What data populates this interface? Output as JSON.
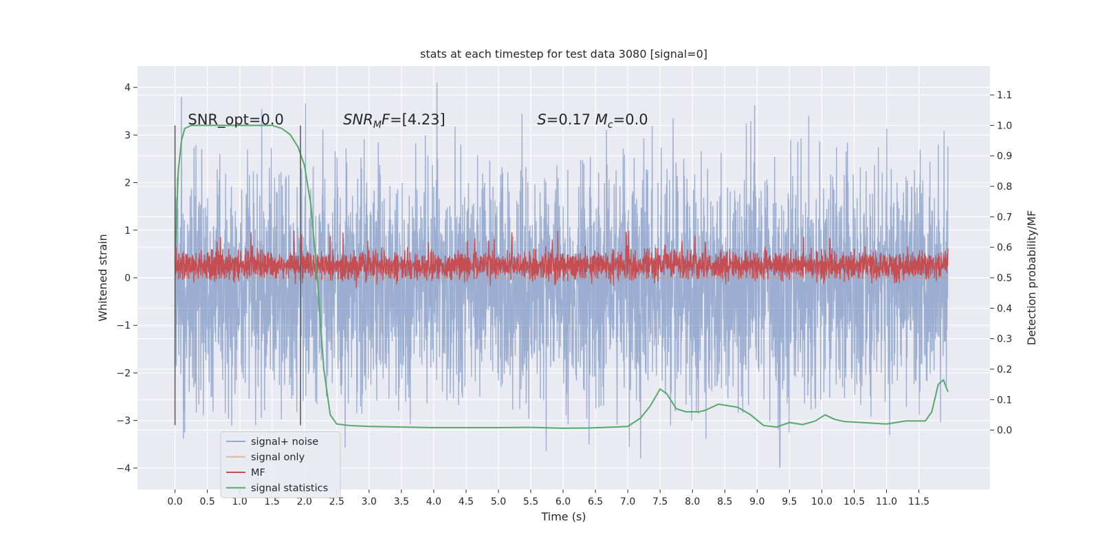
{
  "chart_data": {
    "type": "line",
    "title": "stats at each timestep for test data 3080 [signal=0]",
    "xlabel": "Time (s)",
    "ylabel": "Whitened strain",
    "y2label": "Detection probability/MF",
    "xlim": [
      -0.58,
      12.6
    ],
    "ylim": [
      -4.45,
      4.45
    ],
    "y2lim": [
      -0.195,
      1.195
    ],
    "xticks": [
      0.0,
      0.5,
      1.0,
      1.5,
      2.0,
      2.5,
      3.0,
      3.5,
      4.0,
      4.5,
      5.0,
      5.5,
      6.0,
      6.5,
      7.0,
      7.5,
      8.0,
      8.5,
      9.0,
      9.5,
      10.0,
      10.5,
      11.0,
      11.5
    ],
    "xtick_labels": [
      "0.0",
      "0.5",
      "1.0",
      "1.5",
      "2.0",
      "2.5",
      "3.0",
      "3.5",
      "4.0",
      "4.5",
      "5.0",
      "5.5",
      "6.0",
      "6.5",
      "7.0",
      "7.5",
      "8.0",
      "8.5",
      "9.0",
      "9.5",
      "10.0",
      "10.5",
      "11.0",
      "11.5"
    ],
    "yticks": [
      -4,
      -3,
      -2,
      -1,
      0,
      1,
      2,
      3,
      4
    ],
    "ytick_labels": [
      "−4",
      "−3",
      "−2",
      "−1",
      "0",
      "1",
      "2",
      "3",
      "4"
    ],
    "y2ticks": [
      0.0,
      0.1,
      0.2,
      0.3,
      0.4,
      0.5,
      0.6,
      0.7,
      0.8,
      0.9,
      1.0,
      1.1
    ],
    "y2tick_labels": [
      "0.0",
      "0.1",
      "0.2",
      "0.3",
      "0.4",
      "0.5",
      "0.6",
      "0.7",
      "0.8",
      "0.9",
      "1.0",
      "1.1"
    ],
    "grid": true,
    "legend_position": "lower-left",
    "vlines": [
      {
        "x": 0.0,
        "ymin": -3.1,
        "ymax": 3.2
      },
      {
        "x": 1.94,
        "ymin": -3.1,
        "ymax": 3.2
      }
    ],
    "annotations": [
      {
        "x": 0.2,
        "y": 3.22,
        "parts": [
          {
            "text": "SNR_opt=0.0"
          }
        ]
      },
      {
        "x": 2.6,
        "y": 3.22,
        "parts": [
          {
            "text": "SNR",
            "italic": true
          },
          {
            "text": "M",
            "italic": true,
            "sub": true
          },
          {
            "text": "F",
            "italic": true
          },
          {
            "text": "=[4.23]"
          }
        ]
      },
      {
        "x": 5.6,
        "y": 3.22,
        "parts": [
          {
            "text": "S",
            "italic": true
          },
          {
            "text": "=0.17   "
          },
          {
            "text": "M",
            "italic": true
          },
          {
            "text": "c",
            "italic": true,
            "sub": true
          },
          {
            "text": "=0.0"
          }
        ]
      }
    ],
    "series": [
      {
        "name": "signal+ noise",
        "color": "#4c72b0",
        "axis": "left",
        "kind": "noise",
        "x_range": [
          0.0,
          11.95
        ],
        "envelope_low": -2.3,
        "envelope_high": 2.0,
        "peaks": [
          {
            "x": 0.1,
            "y": 3.8
          },
          {
            "x": 4.05,
            "y": 4.1
          },
          {
            "x": 0.15,
            "y": -3.25
          },
          {
            "x": 6.4,
            "y": -3.5
          },
          {
            "x": 7.2,
            "y": -3.8
          },
          {
            "x": 9.35,
            "y": -4.0
          },
          {
            "x": 11.05,
            "y": -3.3
          },
          {
            "x": 7.7,
            "y": 3.35
          },
          {
            "x": 9.8,
            "y": 3.4
          },
          {
            "x": 8.9,
            "y": 3.3
          },
          {
            "x": 11.8,
            "y": 2.8
          }
        ]
      },
      {
        "name": "signal only",
        "color": "#dd8452",
        "axis": "left",
        "kind": "flat",
        "x_range": [
          0.0,
          11.95
        ],
        "value": 0.0
      },
      {
        "name": "MF",
        "color": "#c44e52",
        "axis": "right",
        "kind": "band",
        "x_range": [
          0.0,
          11.95
        ],
        "low": 0.5,
        "high": 0.58
      },
      {
        "name": "signal statistics",
        "color": "#55a868",
        "axis": "right",
        "kind": "curve",
        "x": [
          0.0,
          0.05,
          0.1,
          0.15,
          0.25,
          0.5,
          1.0,
          1.5,
          1.65,
          1.78,
          1.9,
          2.0,
          2.1,
          2.2,
          2.3,
          2.4,
          2.5,
          2.7,
          3.0,
          3.5,
          4.0,
          4.5,
          5.0,
          5.5,
          6.0,
          6.4,
          6.8,
          7.0,
          7.2,
          7.35,
          7.5,
          7.6,
          7.75,
          7.9,
          8.1,
          8.2,
          8.4,
          8.7,
          8.9,
          9.1,
          9.3,
          9.5,
          9.7,
          9.9,
          10.05,
          10.2,
          10.35,
          10.6,
          11.0,
          11.3,
          11.6,
          11.7,
          11.8,
          11.88,
          11.95
        ],
        "y": [
          0.55,
          0.85,
          0.95,
          0.99,
          1.0,
          1.0,
          1.0,
          1.0,
          0.99,
          0.97,
          0.93,
          0.87,
          0.74,
          0.5,
          0.2,
          0.05,
          0.02,
          0.015,
          0.012,
          0.01,
          0.008,
          0.008,
          0.008,
          0.009,
          0.006,
          0.007,
          0.01,
          0.012,
          0.04,
          0.08,
          0.135,
          0.12,
          0.07,
          0.06,
          0.06,
          0.065,
          0.085,
          0.075,
          0.05,
          0.015,
          0.01,
          0.025,
          0.018,
          0.03,
          0.05,
          0.035,
          0.028,
          0.025,
          0.02,
          0.03,
          0.03,
          0.06,
          0.15,
          0.165,
          0.125
        ]
      }
    ]
  }
}
